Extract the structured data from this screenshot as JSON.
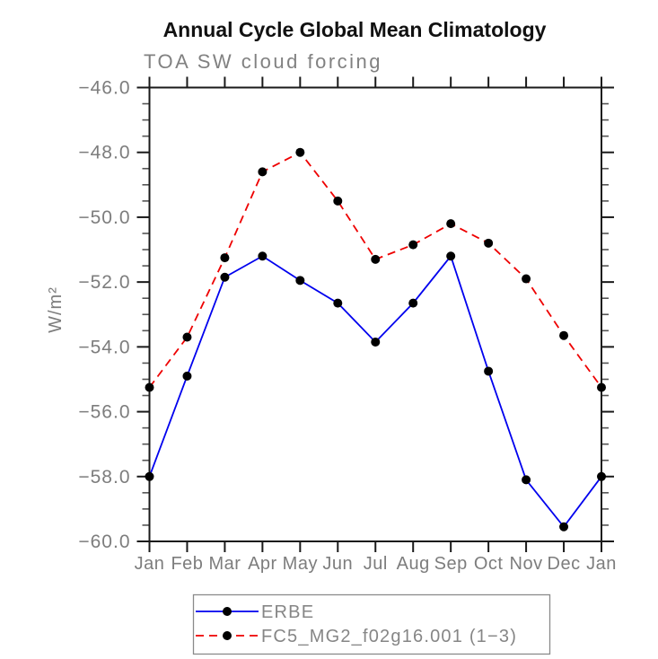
{
  "header": {
    "title": "Annual Cycle Global Mean Climatology"
  },
  "chart_data": {
    "type": "line",
    "title": "Annual Cycle Global Mean Climatology",
    "subtitle": "TOA SW cloud forcing",
    "ylabel": "W/m²",
    "xlabel": "",
    "categories": [
      "Jan",
      "Feb",
      "Mar",
      "Apr",
      "May",
      "Jun",
      "Jul",
      "Aug",
      "Sep",
      "Oct",
      "Nov",
      "Dec",
      "Jan"
    ],
    "ylim": [
      -60.0,
      -46.0
    ],
    "yticks": [
      -46.0,
      -48.0,
      -50.0,
      -52.0,
      -54.0,
      -56.0,
      -58.0,
      -60.0
    ],
    "minor_tick_step": 0.5,
    "grid": "off",
    "legend_position": "bottom",
    "series": [
      {
        "name": "ERBE",
        "style": "solid",
        "color": "#0000EE",
        "marker": "circle",
        "marker_color": "#000000",
        "values": [
          -58.0,
          -54.9,
          -51.85,
          -51.2,
          -51.95,
          -52.65,
          -53.85,
          -52.65,
          -51.2,
          -54.75,
          -58.1,
          -59.55,
          -58.0
        ]
      },
      {
        "name": "FC5_MG2_f02g16.001 (1−3)",
        "style": "dashed",
        "color": "#EE0000",
        "marker": "circle",
        "marker_color": "#000000",
        "values": [
          -55.25,
          -53.7,
          -51.25,
          -48.6,
          -48.0,
          -49.5,
          -51.3,
          -50.85,
          -50.2,
          -50.8,
          -51.9,
          -53.65,
          -55.25
        ]
      }
    ],
    "colors": {
      "axis": "#1a1a1a",
      "gray_text": "#7d7d7d",
      "legend_border": "#8a8a8a"
    }
  }
}
